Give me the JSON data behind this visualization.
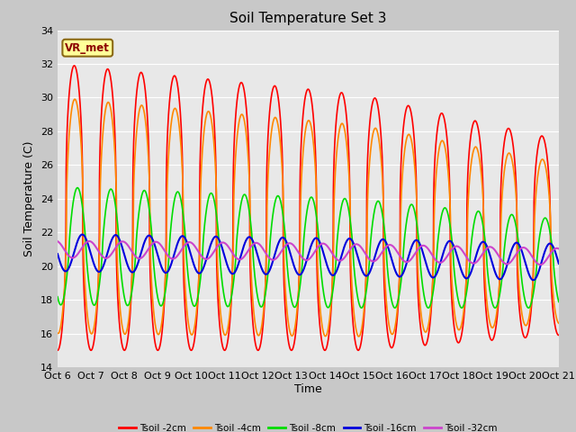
{
  "title": "Soil Temperature Set 3",
  "xlabel": "Time",
  "ylabel": "Soil Temperature (C)",
  "ylim": [
    14,
    34
  ],
  "xlim": [
    0,
    15
  ],
  "yticks": [
    14,
    16,
    18,
    20,
    22,
    24,
    26,
    28,
    30,
    32,
    34
  ],
  "xtick_labels": [
    "Oct 6",
    "Oct 7",
    "Oct 8",
    "Oct 9",
    "Oct 10",
    "Oct 11",
    "Oct 12",
    "Oct 13",
    "Oct 14",
    "Oct 15",
    "Oct 16",
    "Oct 17",
    "Oct 18",
    "Oct 19",
    "Oct 20",
    "Oct 21"
  ],
  "background_color": "#e8e8e8",
  "annotation_text": "VR_met",
  "annotation_box_color": "#ffff99",
  "annotation_border_color": "#8b6914",
  "series_colors": [
    "#ff0000",
    "#ff8800",
    "#00dd00",
    "#0000dd",
    "#cc44cc"
  ],
  "series_labels": [
    "Tsoil -2cm",
    "Tsoil -4cm",
    "Tsoil -8cm",
    "Tsoil -16cm",
    "Tsoil -32cm"
  ]
}
